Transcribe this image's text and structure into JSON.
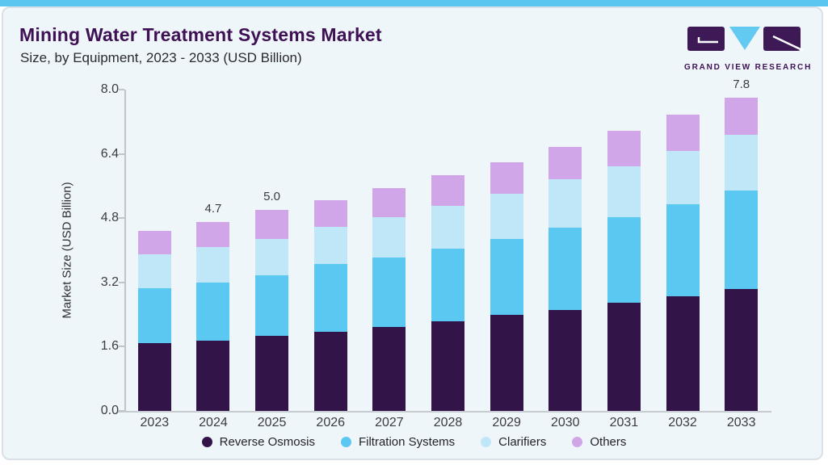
{
  "header": {
    "title": "Mining Water Treatment Systems Market",
    "subtitle": "Size, by Equipment, 2023 - 2033 (USD Billion)",
    "brand_name": "GRAND VIEW RESEARCH"
  },
  "chart_data": {
    "type": "bar",
    "stacked": true,
    "title": "Mining Water Treatment Systems Market Size, by Equipment, 2023 - 2033 (USD Billion)",
    "xlabel": "",
    "ylabel": "Market Size (USD Billion)",
    "ylim": [
      0,
      8
    ],
    "yticks": [
      "0.0",
      "1.6",
      "3.2",
      "4.8",
      "6.4",
      "8.0"
    ],
    "grid": false,
    "legend_position": "bottom",
    "categories": [
      "2023",
      "2024",
      "2025",
      "2026",
      "2027",
      "2028",
      "2029",
      "2030",
      "2031",
      "2032",
      "2033"
    ],
    "series": [
      {
        "name": "Reverse Osmosis",
        "color": "#321449",
        "values": [
          1.68,
          1.74,
          1.87,
          1.97,
          2.1,
          2.23,
          2.4,
          2.52,
          2.69,
          2.86,
          3.04
        ]
      },
      {
        "name": "Filtration Systems",
        "color": "#5bc8f2",
        "values": [
          1.37,
          1.45,
          1.51,
          1.68,
          1.71,
          1.82,
          1.89,
          2.04,
          2.14,
          2.29,
          2.44
        ]
      },
      {
        "name": "Clarifiers",
        "color": "#c0e7f8",
        "values": [
          0.85,
          0.9,
          0.91,
          0.94,
          1.01,
          1.06,
          1.11,
          1.21,
          1.27,
          1.32,
          1.39
        ]
      },
      {
        "name": "Others",
        "color": "#d0a6e8",
        "values": [
          0.58,
          0.61,
          0.71,
          0.66,
          0.73,
          0.76,
          0.8,
          0.81,
          0.87,
          0.9,
          0.93
        ]
      }
    ],
    "totals": [
      4.48,
      4.7,
      5.0,
      5.25,
      5.55,
      5.87,
      6.2,
      6.58,
      6.97,
      7.37,
      7.8
    ],
    "bar_labels": {
      "2024": "4.7",
      "2025": "5.0",
      "2033": "7.8"
    }
  },
  "colors": {
    "accent_topbar": "#5bc6f0",
    "card_background": "#eff6fa",
    "card_border": "#d9e0e7",
    "title_text": "#3e1054",
    "subtitle_text": "#2a2a32",
    "axis_line": "#bfc5cb",
    "axis_text": "#3b3b42",
    "logo_purple": "#3d1a55",
    "logo_blue": "#62c9f0"
  }
}
